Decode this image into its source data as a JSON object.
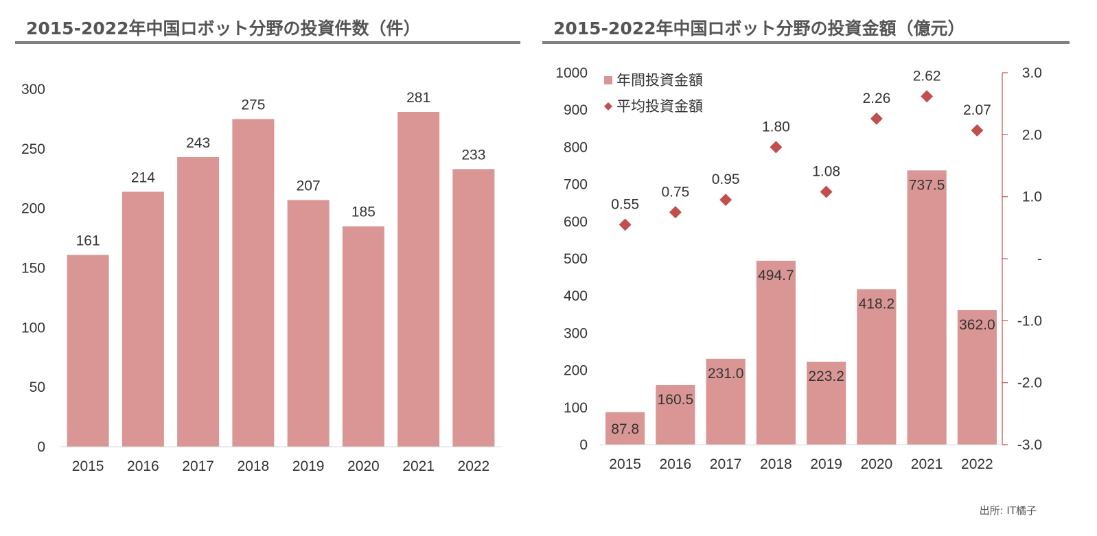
{
  "source": "出所: IT橘子",
  "colors": {
    "bar": "#d99694",
    "marker": "#c0504d",
    "axis": "#d9d9d9",
    "right_axis": "#c0504d",
    "text": "#333333"
  },
  "chart_data": [
    {
      "type": "bar",
      "title": "2015-2022年中国ロボット分野の投資件数（件）",
      "categories": [
        "2015",
        "2016",
        "2017",
        "2018",
        "2019",
        "2020",
        "2021",
        "2022"
      ],
      "values": [
        161,
        214,
        243,
        275,
        207,
        185,
        281,
        233
      ],
      "data_labels": [
        "161",
        "214",
        "243",
        "275",
        "207",
        "185",
        "281",
        "233"
      ],
      "ylim": [
        0,
        300
      ],
      "y_ticks": [
        "0",
        "50",
        "100",
        "150",
        "200",
        "250",
        "300"
      ],
      "grid": false
    },
    {
      "type": "bar+scatter",
      "title": "2015-2022年中国ロボット分野の投資金額（億元）",
      "categories": [
        "2015",
        "2016",
        "2017",
        "2018",
        "2019",
        "2020",
        "2021",
        "2022"
      ],
      "series": [
        {
          "name": "年間投資金額",
          "type": "bar",
          "axis": "left",
          "values": [
            87.8,
            160.5,
            231.0,
            494.7,
            223.2,
            418.2,
            737.5,
            362.0
          ],
          "labels": [
            "87.8",
            "160.5",
            "231.0",
            "494.7",
            "223.2",
            "418.2",
            "737.5",
            "362.0"
          ]
        },
        {
          "name": "平均投資金額",
          "type": "scatter",
          "axis": "right",
          "values": [
            0.55,
            0.75,
            0.95,
            1.8,
            1.08,
            2.26,
            2.62,
            2.07
          ],
          "labels": [
            "0.55",
            "0.75",
            "0.95",
            "1.80",
            "1.08",
            "2.26",
            "2.62",
            "2.07"
          ]
        }
      ],
      "ylim": [
        0,
        1000
      ],
      "y_ticks": [
        "0",
        "100",
        "200",
        "300",
        "400",
        "500",
        "600",
        "700",
        "800",
        "900",
        "1000"
      ],
      "y2lim": [
        -3,
        3
      ],
      "y2_ticks": [
        "-3.0",
        "-2.0",
        "-1.0",
        "-",
        "1.0",
        "2.0",
        "3.0"
      ],
      "legend": "top-left",
      "grid": false
    }
  ]
}
